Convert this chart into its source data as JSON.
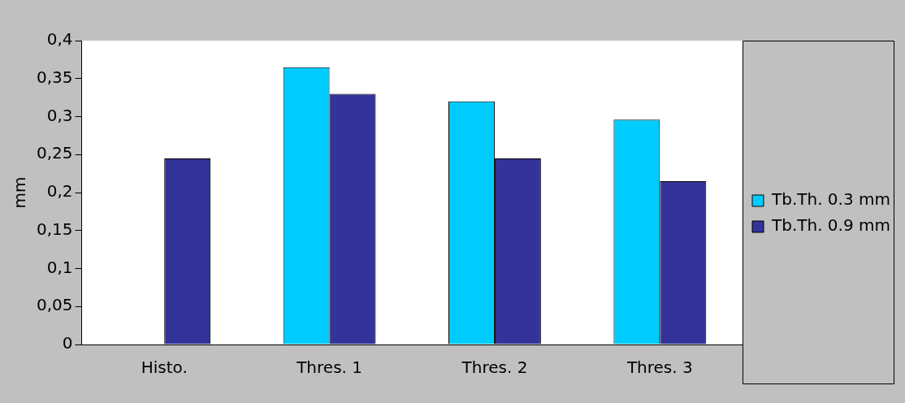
{
  "chart_data": {
    "type": "bar",
    "ylabel": "mm",
    "categories": [
      "Histo.",
      "Thres. 1",
      "Thres. 2",
      "Thres. 3"
    ],
    "series": [
      {
        "name": "Tb.Th. 0.3 mm",
        "color": "#00ccff",
        "values": [
          null,
          0.365,
          0.32,
          0.296
        ]
      },
      {
        "name": "Tb.Th. 0.9 mm",
        "color": "#333399",
        "values": [
          0.245,
          0.33,
          0.245,
          0.215
        ]
      }
    ],
    "ylim": [
      0,
      0.4
    ],
    "yticks": [
      0,
      {
        "value": 0.05,
        "label": "0,05"
      },
      {
        "value": 0.1,
        "label": "0,1"
      },
      {
        "value": 0.15,
        "label": "0,15"
      },
      {
        "value": 0.2,
        "label": "0,2"
      },
      {
        "value": 0.25,
        "label": "0,25"
      },
      {
        "value": 0.3,
        "label": "0,3"
      },
      {
        "value": 0.35,
        "label": "0,35"
      },
      {
        "value": 0.4,
        "label": "0,4"
      }
    ],
    "grid": false,
    "legend": "right"
  }
}
